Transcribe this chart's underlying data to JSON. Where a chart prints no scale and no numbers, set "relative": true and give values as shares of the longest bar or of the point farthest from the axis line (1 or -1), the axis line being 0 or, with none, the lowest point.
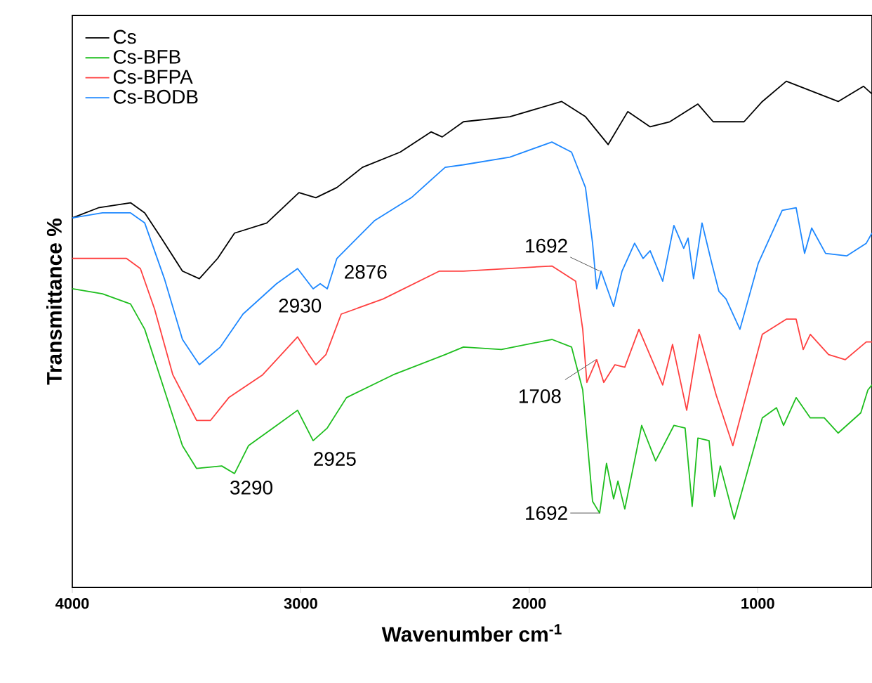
{
  "chart_data": {
    "type": "line",
    "relative": true,
    "xlabel": "Wavenumber cm$^{-1}$",
    "ylabel": "Transmittance %",
    "xlim": [
      4000,
      500
    ],
    "xticks": [
      4000,
      3000,
      2000,
      1000
    ],
    "legend": "top left",
    "marker": "none",
    "series": [
      {
        "name": "Cs",
        "color": "#000000",
        "x": [
          4000,
          3886,
          3745,
          3683,
          3610,
          3518,
          3444,
          3364,
          3290,
          3149,
          3008,
          2934,
          2842,
          2730,
          2565,
          2430,
          2381,
          2288,
          2085,
          1858,
          1754,
          1655,
          1569,
          1471,
          1385,
          1262,
          1195,
          1060,
          980,
          875,
          648,
          537,
          500
        ],
        "values": [
          0.73,
          0.75,
          0.76,
          0.74,
          0.69,
          0.625,
          0.61,
          0.65,
          0.7,
          0.72,
          0.78,
          0.77,
          0.79,
          0.83,
          0.86,
          0.9,
          0.89,
          0.92,
          0.93,
          0.96,
          0.93,
          0.875,
          0.94,
          0.91,
          0.92,
          0.955,
          0.92,
          0.92,
          0.96,
          1.0,
          0.96,
          0.99,
          0.975
        ]
      },
      {
        "name": "Cs-BFB",
        "color": "#1ebe1e",
        "x": [
          4000,
          3868,
          3745,
          3683,
          3597,
          3518,
          3456,
          3346,
          3290,
          3229,
          3106,
          3014,
          2946,
          2884,
          2800,
          2596,
          2368,
          2288,
          2122,
          1901,
          1815,
          1766,
          1723,
          1692,
          1662,
          1631,
          1612,
          1582,
          1508,
          1447,
          1367,
          1318,
          1287,
          1262,
          1213,
          1189,
          1164,
          1103,
          980,
          918,
          887,
          832,
          770,
          709,
          648,
          549,
          518,
          500
        ],
        "values": [
          0.59,
          0.58,
          0.56,
          0.51,
          0.39,
          0.28,
          0.235,
          0.24,
          0.225,
          0.28,
          0.32,
          0.35,
          0.29,
          0.315,
          0.375,
          0.42,
          0.46,
          0.475,
          0.47,
          0.49,
          0.475,
          0.39,
          0.17,
          0.147,
          0.245,
          0.175,
          0.21,
          0.155,
          0.32,
          0.25,
          0.32,
          0.315,
          0.16,
          0.295,
          0.29,
          0.18,
          0.24,
          0.135,
          0.335,
          0.355,
          0.32,
          0.375,
          0.335,
          0.335,
          0.305,
          0.345,
          0.39,
          0.4
        ]
      },
      {
        "name": "Cs-BFPA",
        "color": "#ff4040",
        "x": [
          4000,
          3763,
          3702,
          3640,
          3560,
          3456,
          3395,
          3315,
          3167,
          3014,
          2965,
          2934,
          2890,
          2823,
          2639,
          2393,
          2288,
          1901,
          1797,
          1766,
          1748,
          1705,
          1674,
          1625,
          1582,
          1520,
          1416,
          1373,
          1311,
          1256,
          1182,
          1109,
          980,
          875,
          832,
          801,
          770,
          690,
          617,
          525,
          500
        ],
        "values": [
          0.65,
          0.65,
          0.63,
          0.55,
          0.42,
          0.33,
          0.33,
          0.375,
          0.42,
          0.495,
          0.46,
          0.44,
          0.46,
          0.54,
          0.57,
          0.625,
          0.625,
          0.635,
          0.605,
          0.51,
          0.405,
          0.45,
          0.405,
          0.44,
          0.435,
          0.51,
          0.4,
          0.48,
          0.35,
          0.5,
          0.38,
          0.28,
          0.5,
          0.53,
          0.53,
          0.47,
          0.5,
          0.46,
          0.45,
          0.485,
          0.485
        ]
      },
      {
        "name": "Cs-BODB",
        "color": "#1e88ff",
        "x": [
          4000,
          3868,
          3745,
          3683,
          3597,
          3518,
          3444,
          3352,
          3253,
          3106,
          3014,
          2946,
          2915,
          2884,
          2842,
          2676,
          2516,
          2393,
          2368,
          2288,
          2085,
          1901,
          1815,
          1754,
          1723,
          1705,
          1686,
          1631,
          1594,
          1539,
          1502,
          1471,
          1416,
          1367,
          1324,
          1305,
          1281,
          1244,
          1201,
          1170,
          1139,
          1078,
          998,
          893,
          832,
          795,
          764,
          703,
          611,
          525,
          500
        ],
        "values": [
          0.73,
          0.74,
          0.74,
          0.72,
          0.61,
          0.49,
          0.44,
          0.475,
          0.54,
          0.6,
          0.63,
          0.59,
          0.6,
          0.59,
          0.65,
          0.725,
          0.77,
          0.82,
          0.83,
          0.835,
          0.85,
          0.88,
          0.86,
          0.79,
          0.68,
          0.59,
          0.625,
          0.555,
          0.625,
          0.68,
          0.65,
          0.665,
          0.605,
          0.715,
          0.67,
          0.69,
          0.61,
          0.72,
          0.64,
          0.585,
          0.57,
          0.51,
          0.64,
          0.745,
          0.75,
          0.66,
          0.71,
          0.66,
          0.655,
          0.68,
          0.7
        ]
      }
    ],
    "annotations": [
      {
        "text": "2930",
        "x": 2930,
        "y": 0.59
      },
      {
        "text": "2876",
        "x": 2876,
        "y": 0.59
      },
      {
        "text": "1692",
        "x": 1692,
        "y": 0.625
      },
      {
        "text": "1708",
        "x": 1708,
        "y": 0.45
      },
      {
        "text": "3290",
        "x": 3290,
        "y": 0.225
      },
      {
        "text": "2925",
        "x": 2925,
        "y": 0.29
      },
      {
        "text": "1692",
        "x": 1692,
        "y": 0.147
      }
    ]
  }
}
